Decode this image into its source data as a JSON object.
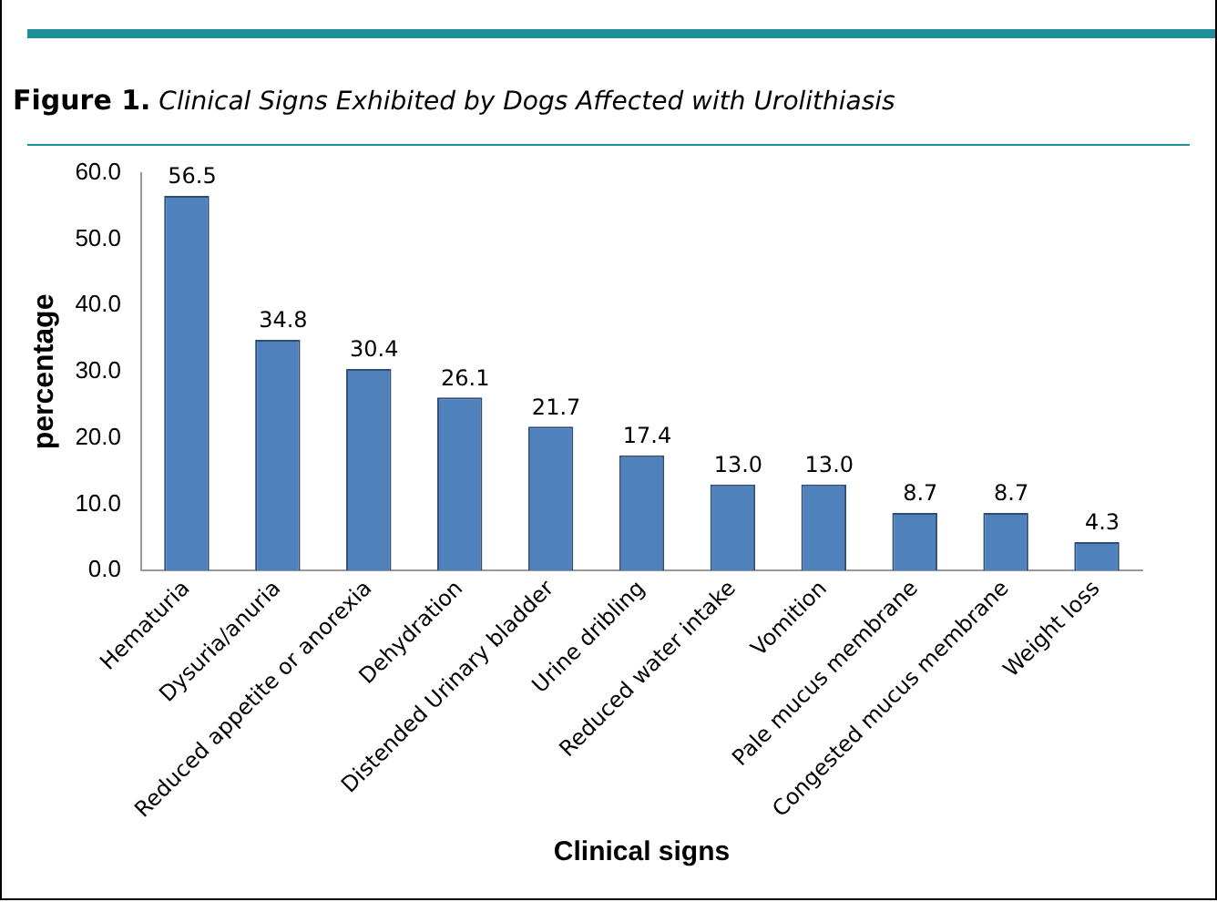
{
  "chart_data": {
    "type": "bar",
    "title": "Figure 1. Clinical Signs Exhibited by Dogs Affected with Urolithiasis",
    "xlabel": "Clinical signs",
    "ylabel": "percentage",
    "categories": [
      "Hematuria",
      "Dysuria/anuria",
      "Reduced appetite or anorexia",
      "Dehydration",
      "Distended Urinary bladder",
      "Urine dribling",
      "Reduced water intake",
      "Vomition",
      "Pale mucus membrane",
      "Congested mucus membrane",
      "Weight loss"
    ],
    "values": [
      56.5,
      34.8,
      30.4,
      26.1,
      21.7,
      17.4,
      13.0,
      13.0,
      8.7,
      8.7,
      4.3
    ],
    "value_labels": [
      "56.5",
      "34.8",
      "30.4",
      "26.1",
      "21.7",
      "17.4",
      "13.0",
      "13.0",
      "8.7",
      "8.7",
      "4.3"
    ],
    "color": "#4f81bd",
    "ylim": [
      0,
      60
    ],
    "yticks": [
      {
        "value": 0,
        "label": "0.0"
      },
      {
        "value": 10,
        "label": "10.0"
      },
      {
        "value": 20,
        "label": "20.0"
      },
      {
        "value": 30,
        "label": "30.0"
      },
      {
        "value": 40,
        "label": "40.0"
      },
      {
        "value": 50,
        "label": "50.0"
      },
      {
        "value": 60,
        "label": "60.0"
      }
    ],
    "grid": false,
    "legend": false
  }
}
